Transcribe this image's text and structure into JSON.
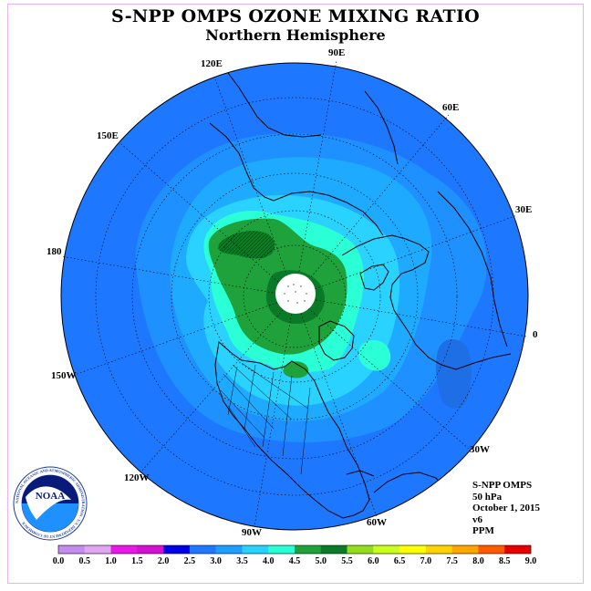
{
  "title": "S-NPP OMPS OZONE MIXING RATIO",
  "subtitle": "Northern Hemisphere",
  "longitude_labels": {
    "lon_90e": "90E",
    "lon_60e": "60E",
    "lon_30e": "30E",
    "lon_0": "0",
    "lon_30w": "30W",
    "lon_60w": "60W",
    "lon_90w": "90W",
    "lon_120w": "120W",
    "lon_150w": "150W",
    "lon_180": "180",
    "lon_150e": "150E",
    "lon_120e": "120E"
  },
  "info": {
    "instrument": "S-NPP OMPS",
    "pressure_level": "50 hPa",
    "date": "October 1, 2015",
    "version": "v6",
    "units": "PPM"
  },
  "logo": {
    "text": "NOAA",
    "ring_text": "NATIONAL OCEANIC AND ATMOSPHERIC ADMINISTRATION · U.S. DEPARTMENT OF COMMERCE"
  },
  "colorbar": {
    "ticks": [
      "0.0",
      "0.5",
      "1.0",
      "1.5",
      "2.0",
      "2.5",
      "3.0",
      "3.5",
      "4.0",
      "4.5",
      "5.0",
      "5.5",
      "6.0",
      "6.5",
      "7.0",
      "7.5",
      "8.0",
      "8.5",
      "9.0"
    ],
    "colors": [
      "#c58cf0",
      "#e0a6f2",
      "#e619e6",
      "#d211d2",
      "#0000e6",
      "#1e78ff",
      "#1e9eff",
      "#2ad2ff",
      "#2affd6",
      "#1fa23c",
      "#0b7a28",
      "#96dc1e",
      "#c8ff1e",
      "#ffff00",
      "#ffd200",
      "#ffa500",
      "#ff5a00",
      "#e60000",
      "#8b5a3c"
    ]
  },
  "map_colors": {
    "ocean_outer": "#1e78ff",
    "level_2_5": "#1e90ff",
    "level_3_0": "#1eaaff",
    "level_3_5": "#2ad2ff",
    "level_4_0": "#2affd6",
    "level_4_5": "#1fa23c",
    "level_5_0": "#0b7a28",
    "pole_hole": "#ffffff"
  }
}
